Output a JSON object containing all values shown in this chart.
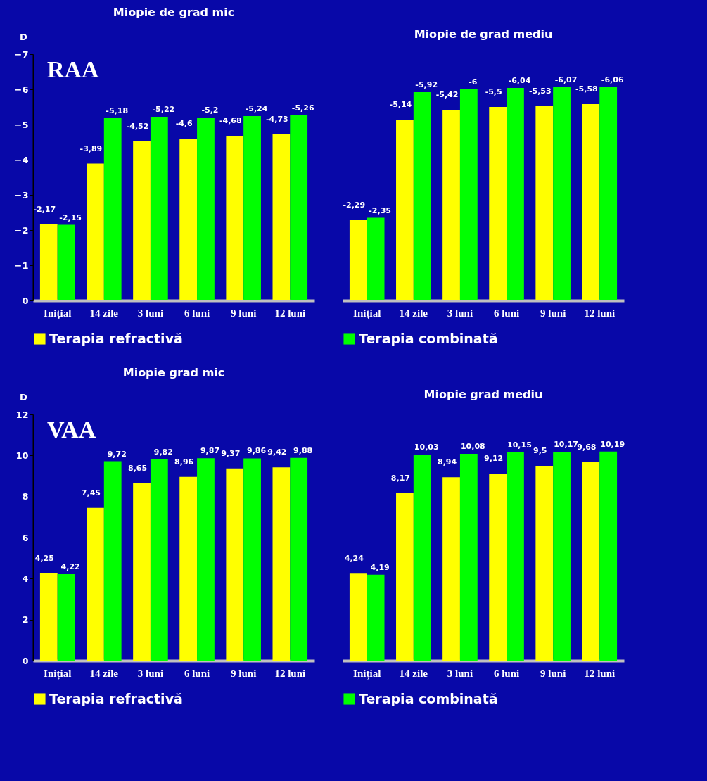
{
  "chart_data": [
    {
      "type": "bar",
      "title": "Miopie de grad mic",
      "ylabel": "D",
      "annotations": [
        "RAA"
      ],
      "categories": [
        "Inițial",
        "14 zile",
        "3 luni",
        "6 luni",
        "9 luni",
        "12 luni"
      ],
      "series": [
        {
          "name": "Terapia refractivă",
          "color": "#ffff00",
          "values": [
            -2.17,
            -3.89,
            -4.52,
            -4.6,
            -4.68,
            -4.73
          ],
          "value_labels": [
            "-2,17",
            "-3,89",
            "-4,52",
            "-4,6",
            "-4,68",
            "-4,73"
          ]
        },
        {
          "color": "#00ff00",
          "values": [
            -2.15,
            -5.18,
            -5.22,
            -5.2,
            -5.24,
            -5.26
          ],
          "value_labels": [
            "-2,15",
            "-5,18",
            "-5,22",
            "-5,2",
            "-5,24",
            "-5,26"
          ]
        }
      ],
      "ylim": [
        0,
        -7
      ],
      "yticks": [
        0,
        -1,
        -2,
        -3,
        -4,
        -5,
        -6,
        -7
      ],
      "legend": "bottom"
    },
    {
      "type": "bar",
      "title": "Miopie de grad mediu",
      "categories": [
        "Inițial",
        "14 zile",
        "3 luni",
        "6 luni",
        "9 luni",
        "12 luni"
      ],
      "series": [
        {
          "color": "#ffff00",
          "values": [
            -2.29,
            -5.14,
            -5.42,
            -5.5,
            -5.53,
            -5.58
          ],
          "value_labels": [
            "-2,29",
            "-5,14",
            "-5,42",
            "-5,5",
            "-5,53",
            "-5,58"
          ]
        },
        {
          "name": "Terapia combinată",
          "color": "#00ff00",
          "values": [
            -2.35,
            -5.92,
            -6,
            -6.04,
            -6.07,
            -6.06
          ],
          "value_labels": [
            "-2,35",
            "-5,92",
            "-6",
            "-6,04",
            "-6,07",
            "-6,06"
          ]
        }
      ],
      "ylim": [
        0,
        -7
      ],
      "tick_labels": "x",
      "legend": "bottom"
    },
    {
      "type": "bar",
      "title": "Miopie grad mic",
      "ylabel": "D",
      "annotations": [
        "VAA"
      ],
      "categories": [
        "Inițial",
        "14 zile",
        "3 luni",
        "6 luni",
        "9 luni",
        "12 luni"
      ],
      "series": [
        {
          "name": "Terapia refractivă",
          "color": "#ffff00",
          "values": [
            4.25,
            7.45,
            8.65,
            8.96,
            9.37,
            9.42
          ],
          "value_labels": [
            "4,25",
            "7,45",
            "8,65",
            "8,96",
            "9,37",
            "9,42"
          ]
        },
        {
          "color": "#00ff00",
          "values": [
            4.22,
            9.72,
            9.82,
            9.87,
            9.86,
            9.88
          ],
          "value_labels": [
            "4,22",
            "9,72",
            "9,82",
            "9,87",
            "9,86",
            "9,88"
          ]
        }
      ],
      "ylim": [
        0,
        12
      ],
      "yticks": [
        0,
        2,
        4,
        6,
        8,
        10,
        12
      ],
      "legend": "bottom"
    },
    {
      "type": "bar",
      "title": "Miopie grad mediu",
      "categories": [
        "Inițial",
        "14 zile",
        "3 luni",
        "6 luni",
        "9 luni",
        "12 luni"
      ],
      "series": [
        {
          "color": "#ffff00",
          "values": [
            4.24,
            8.17,
            8.94,
            9.12,
            9.5,
            9.68
          ],
          "value_labels": [
            "4,24",
            "8,17",
            "8,94",
            "9,12",
            "9,5",
            "9,68"
          ]
        },
        {
          "name": "Terapia combinată",
          "color": "#00ff00",
          "values": [
            4.19,
            10.03,
            10.08,
            10.15,
            10.17,
            10.19
          ],
          "value_labels": [
            "4,19",
            "10,03",
            "10,08",
            "10,15",
            "10,17",
            "10,19"
          ]
        }
      ],
      "ylim": [
        0,
        12
      ],
      "tick_labels": "x",
      "legend": "bottom"
    }
  ]
}
